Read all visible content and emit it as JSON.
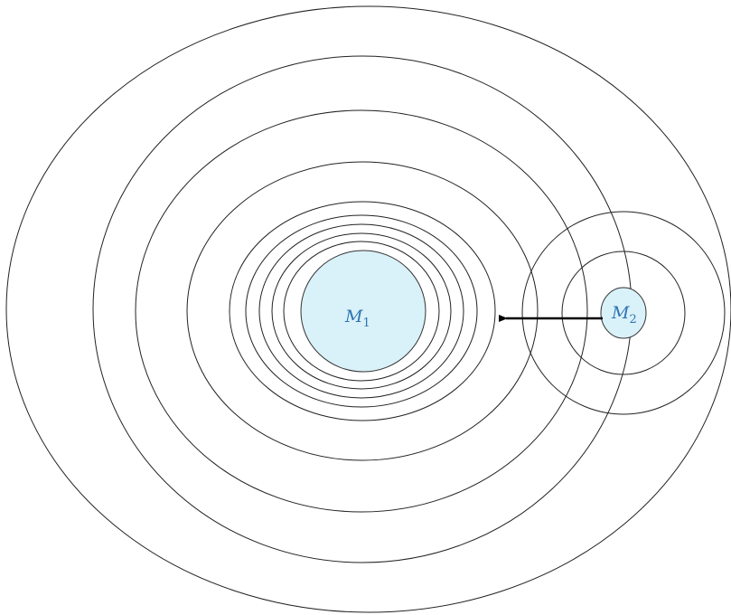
{
  "nodes": [
    {
      "label": "M",
      "subscript": "1"
    },
    {
      "label": "M",
      "subscript": "2"
    }
  ]
}
